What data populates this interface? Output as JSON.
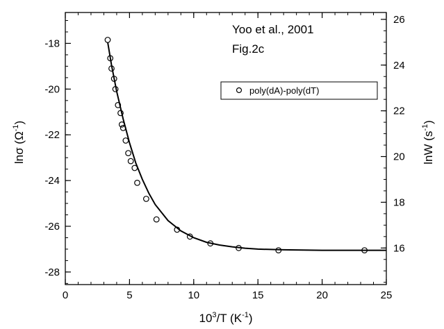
{
  "chart_data": {
    "type": "scatter",
    "annotation_lines": [
      "Yoo et al., 2001",
      "Fig.2c"
    ],
    "legend_position": "top-right",
    "grid": false,
    "x_axis": {
      "title_main": "10",
      "title_sup": "3",
      "title_mid": "/T  (K",
      "title_sup2": "-1",
      "title_end": ")",
      "range": [
        0,
        25
      ],
      "ticks": [
        0,
        5,
        10,
        15,
        20,
        25
      ],
      "tick_labels": [
        "0",
        "5",
        "10",
        "15",
        "20",
        "25"
      ],
      "minor_step": 1
    },
    "y_axis_left": {
      "title_main": "lnσ (Ω",
      "title_sup": "-1",
      "title_end": ")",
      "range": [
        -28.55,
        -16.65
      ],
      "ticks": [
        -28,
        -26,
        -24,
        -22,
        -20,
        -18
      ],
      "tick_labels": [
        "-28",
        "-26",
        "-24",
        "-22",
        "-20",
        "-18"
      ],
      "minor_step": 0.5
    },
    "y_axis_right": {
      "title_main": "lnW (s",
      "title_sup": "-1",
      "title_end": ")",
      "range": [
        14.4,
        26.3
      ],
      "ticks": [
        16,
        18,
        20,
        22,
        24,
        26
      ],
      "tick_labels": [
        "16",
        "18",
        "20",
        "22",
        "24",
        "26"
      ],
      "minor_step": 0.5
    },
    "series": [
      {
        "name": "poly(dA)-poly(dT)",
        "kind": "scatter",
        "marker": "open-circle",
        "points": [
          [
            3.3,
            -17.85
          ],
          [
            3.5,
            -18.65
          ],
          [
            3.6,
            -19.1
          ],
          [
            3.8,
            -19.55
          ],
          [
            3.9,
            -20.0
          ],
          [
            4.1,
            -20.7
          ],
          [
            4.3,
            -21.05
          ],
          [
            4.4,
            -21.55
          ],
          [
            4.5,
            -21.7
          ],
          [
            4.7,
            -22.25
          ],
          [
            4.9,
            -22.8
          ],
          [
            5.1,
            -23.15
          ],
          [
            5.4,
            -23.45
          ],
          [
            5.6,
            -24.1
          ],
          [
            6.3,
            -24.8
          ],
          [
            7.1,
            -25.7
          ],
          [
            8.7,
            -26.15
          ],
          [
            9.7,
            -26.45
          ],
          [
            11.3,
            -26.75
          ],
          [
            13.5,
            -26.95
          ],
          [
            16.6,
            -27.05
          ],
          [
            23.3,
            -27.05
          ]
        ]
      },
      {
        "name": "",
        "kind": "line",
        "points": [
          [
            3.3,
            -17.95
          ],
          [
            3.6,
            -18.95
          ],
          [
            4.0,
            -20.1
          ],
          [
            4.5,
            -21.3
          ],
          [
            5.0,
            -22.35
          ],
          [
            5.5,
            -23.25
          ],
          [
            6.0,
            -23.95
          ],
          [
            6.5,
            -24.55
          ],
          [
            7.0,
            -25.05
          ],
          [
            8.0,
            -25.75
          ],
          [
            9.0,
            -26.2
          ],
          [
            10.0,
            -26.5
          ],
          [
            11.0,
            -26.7
          ],
          [
            12.0,
            -26.82
          ],
          [
            13.0,
            -26.9
          ],
          [
            14.0,
            -26.96
          ],
          [
            15.0,
            -27.0
          ],
          [
            17.0,
            -27.03
          ],
          [
            20.0,
            -27.05
          ],
          [
            25.0,
            -27.05
          ]
        ]
      }
    ]
  }
}
